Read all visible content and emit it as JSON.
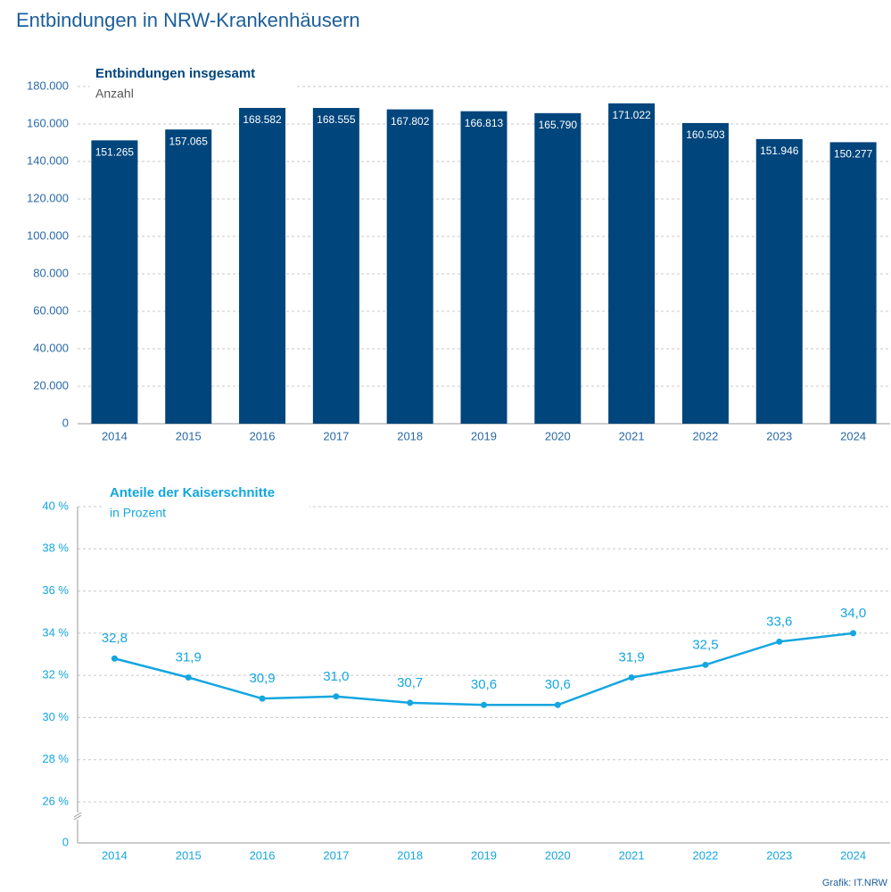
{
  "title": "Entbindungen in NRW-Krankenhäusern",
  "source": "Grafik: IT.NRW",
  "chart_data": [
    {
      "type": "bar",
      "title": "Entbindungen insgesamt",
      "subtitle": "Anzahl",
      "categories": [
        "2014",
        "2015",
        "2016",
        "2017",
        "2018",
        "2019",
        "2020",
        "2021",
        "2022",
        "2023",
        "2024"
      ],
      "values": [
        151265,
        157065,
        168582,
        168555,
        167802,
        166813,
        165790,
        171022,
        160503,
        151946,
        150277
      ],
      "value_labels": [
        "151.265",
        "157.065",
        "168.582",
        "168.555",
        "167.802",
        "166.813",
        "165.790",
        "171.022",
        "160.503",
        "151.946",
        "150.277"
      ],
      "color": "#00457c",
      "ylim": [
        0,
        180000
      ],
      "yticks": [
        0,
        {
          "value": 20000,
          "label": "20.000"
        },
        {
          "value": 40000,
          "label": "40.000"
        },
        {
          "value": 60000,
          "label": "60.000"
        },
        {
          "value": 80000,
          "label": "80.000"
        },
        {
          "value": 100000,
          "label": "100.000"
        },
        {
          "value": 120000,
          "label": "120.000"
        },
        {
          "value": 140000,
          "label": "140.000"
        },
        {
          "value": 160000,
          "label": "160.000"
        },
        {
          "value": 180000,
          "label": "180.000"
        }
      ],
      "grid": true
    },
    {
      "type": "line",
      "title": "Anteile der Kaiserschnitte",
      "subtitle": "in Prozent",
      "categories": [
        "2014",
        "2015",
        "2016",
        "2017",
        "2018",
        "2019",
        "2020",
        "2021",
        "2022",
        "2023",
        "2024"
      ],
      "values": [
        32.8,
        31.9,
        30.9,
        31.0,
        30.7,
        30.6,
        30.6,
        31.9,
        32.5,
        33.6,
        34.0
      ],
      "value_labels": [
        "32,8",
        "31,9",
        "30,9",
        "31,0",
        "30,7",
        "30,6",
        "30,6",
        "31,9",
        "32,5",
        "33,6",
        "34,0"
      ],
      "color": "#14a6e0",
      "ylim": [
        0,
        40
      ],
      "axis_break": [
        0,
        26
      ],
      "yticks": [
        0,
        {
          "value": 26,
          "label": "26 %"
        },
        {
          "value": 28,
          "label": "28 %"
        },
        {
          "value": 30,
          "label": "30 %"
        },
        {
          "value": 32,
          "label": "32 %"
        },
        {
          "value": 34,
          "label": "34 %"
        },
        {
          "value": 36,
          "label": "36 %"
        },
        {
          "value": 38,
          "label": "38 %"
        },
        {
          "value": 40,
          "label": "40 %"
        }
      ],
      "grid": true
    }
  ]
}
